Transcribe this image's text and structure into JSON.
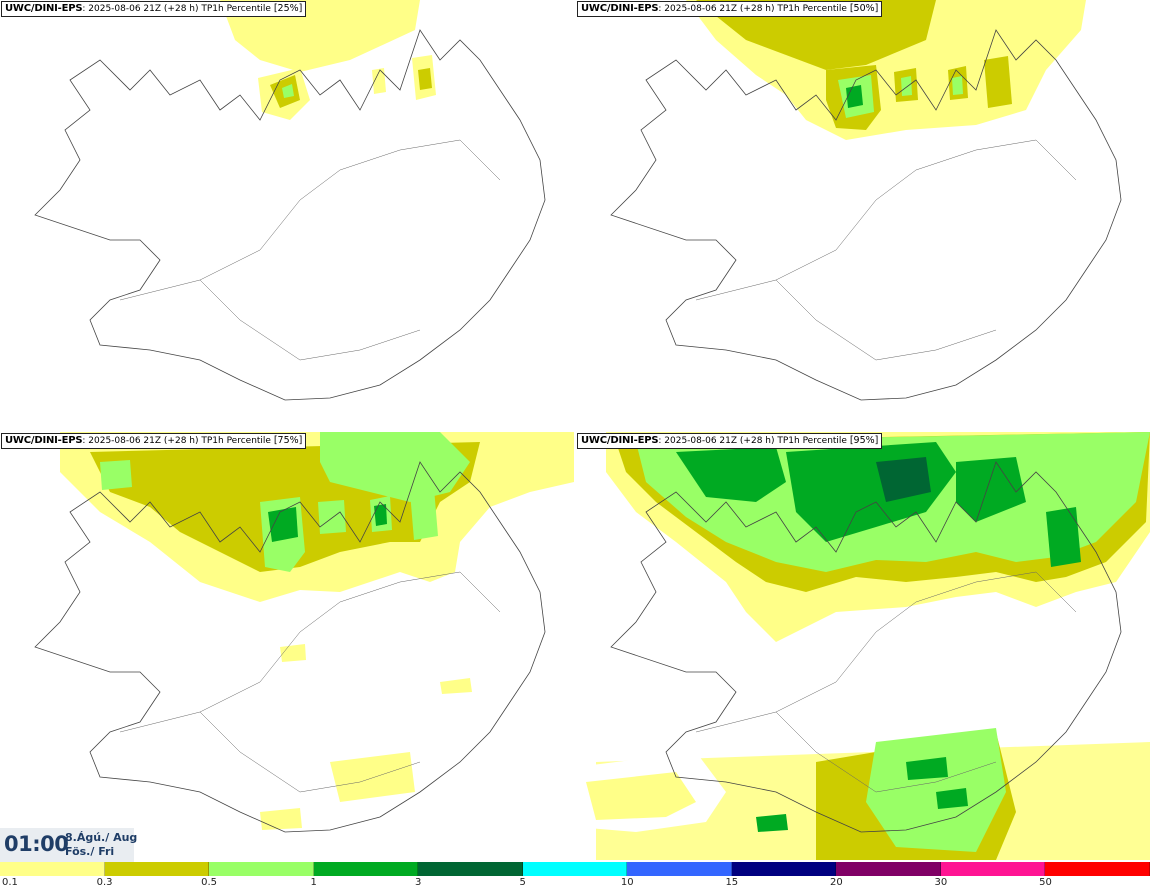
{
  "panels": [
    {
      "title_model": "UWC/DINI-EPS",
      "title_meta": ": 2025-08-06 21Z (+28 h) TP1h Percentile ",
      "title_pct": "[25%]",
      "percentile": 25
    },
    {
      "title_model": "UWC/DINI-EPS",
      "title_meta": ": 2025-08-06 21Z (+28 h) TP1h Percentile ",
      "title_pct": "[50%]",
      "percentile": 50
    },
    {
      "title_model": "UWC/DINI-EPS",
      "title_meta": ": 2025-08-06 21Z (+28 h) TP1h Percentile ",
      "title_pct": "[75%]",
      "percentile": 75
    },
    {
      "title_model": "UWC/DINI-EPS",
      "title_meta": ": 2025-08-06 21Z (+28 h) TP1h Percentile ",
      "title_pct": "[95%]",
      "percentile": 95
    }
  ],
  "time": {
    "clock": "01:00",
    "date_line1": "8.Ágú./ Aug",
    "date_line2": "Fös./ Fri"
  },
  "legend": {
    "labels": [
      "0.1",
      "0.3",
      "0.5",
      "1",
      "3",
      "5",
      "10",
      "15",
      "20",
      "30",
      "50"
    ],
    "colors": [
      "#ffff88",
      "#cccc00",
      "#99ff66",
      "#00aa22",
      "#006633",
      "#00ffff",
      "#3366ff",
      "#000080",
      "#800066",
      "#ff1493",
      "#ff0000"
    ]
  },
  "colors": {
    "land_fill": "#ffffff",
    "coastline": "#444444",
    "roads": "#666666"
  }
}
